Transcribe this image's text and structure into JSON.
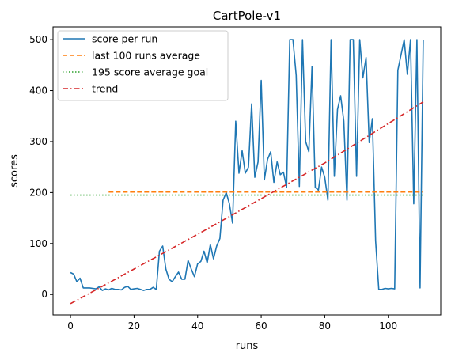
{
  "chart_data": {
    "type": "line",
    "title": "CartPole-v1",
    "xlabel": "runs",
    "ylabel": "scores",
    "xlim": [
      -5.5,
      116.5
    ],
    "ylim": [
      -40,
      525
    ],
    "xticks": [
      0,
      20,
      40,
      60,
      80,
      100
    ],
    "yticks": [
      0,
      100,
      200,
      300,
      400,
      500
    ],
    "grid": false,
    "legend_position": "top-left",
    "series": [
      {
        "name": "score per run",
        "style": "solid",
        "color": "#1f77b4",
        "x": [
          0,
          1,
          2,
          3,
          4,
          5,
          6,
          7,
          8,
          9,
          10,
          11,
          12,
          13,
          14,
          15,
          16,
          17,
          18,
          19,
          20,
          21,
          22,
          23,
          24,
          25,
          26,
          27,
          28,
          29,
          30,
          31,
          32,
          33,
          34,
          35,
          36,
          37,
          38,
          39,
          40,
          41,
          42,
          43,
          44,
          45,
          46,
          47,
          48,
          49,
          50,
          51,
          52,
          53,
          54,
          55,
          56,
          57,
          58,
          59,
          60,
          61,
          62,
          63,
          64,
          65,
          66,
          67,
          68,
          69,
          70,
          71,
          72,
          73,
          74,
          75,
          76,
          77,
          78,
          79,
          80,
          81,
          82,
          83,
          84,
          85,
          86,
          87,
          88,
          89,
          90,
          91,
          92,
          93,
          94,
          95,
          96,
          97,
          98,
          99,
          100,
          101,
          102,
          103,
          104,
          105,
          106,
          107,
          108,
          109,
          110,
          111
        ],
        "y": [
          43,
          40,
          25,
          32,
          13,
          13,
          13,
          12,
          11,
          15,
          8,
          11,
          9,
          12,
          10,
          10,
          9,
          14,
          16,
          10,
          11,
          12,
          10,
          8,
          10,
          10,
          14,
          10,
          85,
          95,
          50,
          30,
          25,
          35,
          44,
          30,
          30,
          67,
          50,
          35,
          60,
          65,
          85,
          62,
          98,
          70,
          95,
          110,
          185,
          200,
          178,
          140,
          340,
          238,
          282,
          238,
          250,
          374,
          230,
          260,
          420,
          225,
          265,
          280,
          220,
          260,
          235,
          240,
          210,
          500,
          500,
          430,
          212,
          500,
          300,
          280,
          447,
          210,
          205,
          250,
          230,
          185,
          500,
          232,
          363,
          390,
          340,
          185,
          500,
          500,
          232,
          500,
          425,
          465,
          298,
          345,
          105,
          10,
          10,
          12,
          11,
          12,
          11,
          440,
          470,
          500,
          432,
          500,
          178,
          500,
          13,
          500
        ]
      },
      {
        "name": "last 100 runs average",
        "style": "dashed",
        "color": "#ff7f0e",
        "x": [
          12,
          111
        ],
        "y": [
          201,
          201
        ]
      },
      {
        "name": "195 score average goal",
        "style": "dotted",
        "color": "#2ca02c",
        "x": [
          0,
          111
        ],
        "y": [
          195,
          195
        ]
      },
      {
        "name": "trend",
        "style": "dashdot",
        "color": "#d62728",
        "x": [
          0,
          20,
          40,
          60,
          80,
          111
        ],
        "y": [
          -18,
          50,
          118,
          188,
          258,
          378
        ]
      }
    ]
  }
}
